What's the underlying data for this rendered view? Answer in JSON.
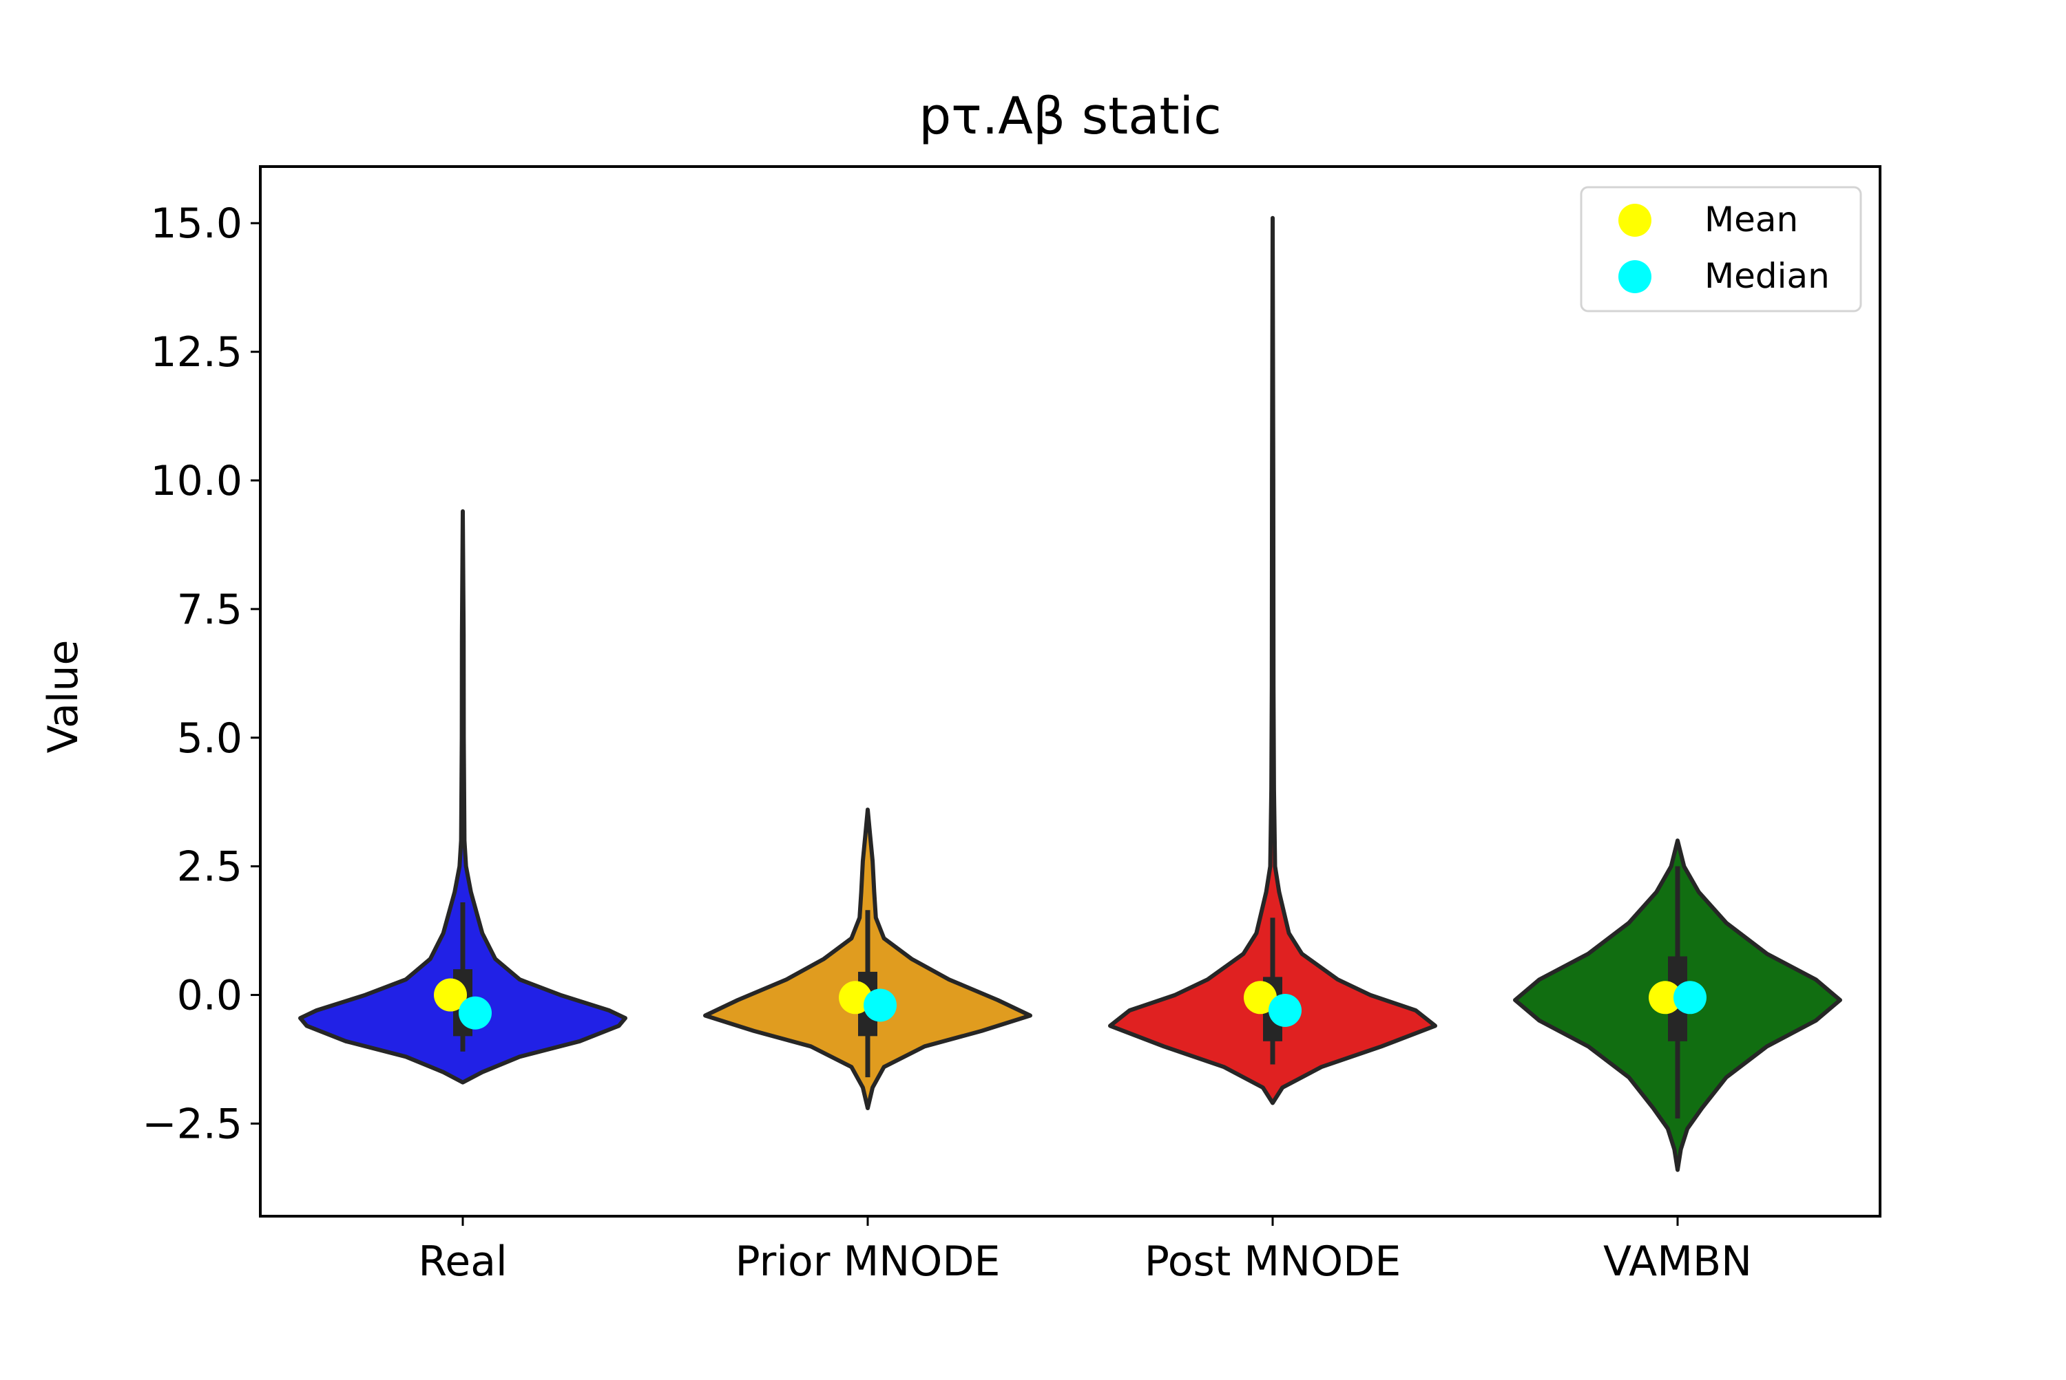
{
  "chart_data": {
    "type": "violin",
    "title": "pτ.Aβ static",
    "xlabel": "",
    "ylabel": "Value",
    "ylim": [
      -4.3,
      16.1
    ],
    "yticks": [
      -2.5,
      0.0,
      2.5,
      5.0,
      7.5,
      10.0,
      12.5,
      15.0
    ],
    "ytick_labels": [
      "−2.5",
      "0.0",
      "2.5",
      "5.0",
      "7.5",
      "10.0",
      "12.5",
      "15.0"
    ],
    "categories": [
      "Real",
      "Prior MNODE",
      "Post MNODE",
      "VAMBN"
    ],
    "grid": false,
    "legend": {
      "placement": "top-right",
      "entries": [
        {
          "label": "Mean",
          "color": "#ffff00"
        },
        {
          "label": "Median",
          "color": "#00ffff"
        }
      ]
    },
    "series": [
      {
        "category": "Real",
        "color": "#2121e6",
        "min": -1.1,
        "q1": -0.8,
        "median": -0.35,
        "mean": 0.0,
        "q3": 0.5,
        "whisker_high": 1.8,
        "kde_extent": [
          -1.7,
          9.4
        ],
        "density_profile": [
          [
            -1.7,
            0.0
          ],
          [
            -1.5,
            0.12
          ],
          [
            -1.2,
            0.35
          ],
          [
            -0.9,
            0.72
          ],
          [
            -0.6,
            0.96
          ],
          [
            -0.45,
            1.0
          ],
          [
            -0.3,
            0.9
          ],
          [
            0.0,
            0.6
          ],
          [
            0.3,
            0.35
          ],
          [
            0.7,
            0.2
          ],
          [
            1.2,
            0.12
          ],
          [
            2.0,
            0.05
          ],
          [
            2.5,
            0.02
          ],
          [
            3.0,
            0.01
          ],
          [
            5.0,
            0.006
          ],
          [
            7.0,
            0.005
          ],
          [
            9.4,
            0.0
          ]
        ]
      },
      {
        "category": "Prior MNODE",
        "color": "#e09c1f",
        "min": -1.6,
        "q1": -0.8,
        "median": -0.2,
        "mean": -0.05,
        "q3": 0.45,
        "whisker_high": 1.65,
        "kde_extent": [
          -2.2,
          3.6
        ],
        "density_profile": [
          [
            -2.2,
            0.0
          ],
          [
            -1.8,
            0.03
          ],
          [
            -1.4,
            0.1
          ],
          [
            -1.0,
            0.35
          ],
          [
            -0.7,
            0.7
          ],
          [
            -0.4,
            1.0
          ],
          [
            -0.1,
            0.8
          ],
          [
            0.3,
            0.5
          ],
          [
            0.7,
            0.27
          ],
          [
            1.1,
            0.1
          ],
          [
            1.5,
            0.05
          ],
          [
            2.0,
            0.04
          ],
          [
            2.6,
            0.03
          ],
          [
            3.1,
            0.015
          ],
          [
            3.6,
            0.0
          ]
        ]
      },
      {
        "category": "Post MNODE",
        "color": "#e02121",
        "min": -1.35,
        "q1": -0.9,
        "median": -0.3,
        "mean": -0.05,
        "q3": 0.35,
        "whisker_high": 1.5,
        "kde_extent": [
          -2.1,
          15.1
        ],
        "density_profile": [
          [
            -2.1,
            0.0
          ],
          [
            -1.8,
            0.06
          ],
          [
            -1.4,
            0.3
          ],
          [
            -1.0,
            0.67
          ],
          [
            -0.6,
            1.0
          ],
          [
            -0.3,
            0.88
          ],
          [
            0.0,
            0.6
          ],
          [
            0.3,
            0.4
          ],
          [
            0.8,
            0.18
          ],
          [
            1.2,
            0.1
          ],
          [
            2.0,
            0.04
          ],
          [
            2.5,
            0.015
          ],
          [
            4.0,
            0.008
          ],
          [
            6.0,
            0.005
          ],
          [
            10.0,
            0.004
          ],
          [
            15.1,
            0.0
          ]
        ]
      },
      {
        "category": "VAMBN",
        "color": "#116e11",
        "min": -2.4,
        "q1": -0.9,
        "median": -0.05,
        "mean": -0.05,
        "q3": 0.75,
        "whisker_high": 2.5,
        "kde_extent": [
          -3.4,
          3.0
        ],
        "density_profile": [
          [
            -3.4,
            0.0
          ],
          [
            -3.0,
            0.02
          ],
          [
            -2.6,
            0.06
          ],
          [
            -2.2,
            0.15
          ],
          [
            -1.6,
            0.3
          ],
          [
            -1.0,
            0.55
          ],
          [
            -0.5,
            0.85
          ],
          [
            -0.1,
            1.0
          ],
          [
            0.3,
            0.85
          ],
          [
            0.8,
            0.55
          ],
          [
            1.4,
            0.3
          ],
          [
            2.0,
            0.13
          ],
          [
            2.5,
            0.04
          ],
          [
            3.0,
            0.0
          ]
        ]
      }
    ]
  }
}
